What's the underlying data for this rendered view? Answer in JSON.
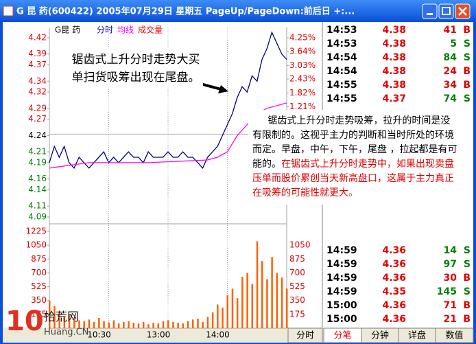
{
  "window": {
    "title": "G 昆  药(600422)  2005年07月29日  星期五  PageUp/PageDown:前后日  +:..."
  },
  "chart_data": [
    {
      "type": "line",
      "stock": "G昆  药",
      "xlim": [
        0,
        240
      ],
      "xticks": [
        {
          "value": 60,
          "label": "10:30"
        },
        {
          "value": 120,
          "label": "13:00"
        },
        {
          "value": 180,
          "label": "14:00"
        }
      ],
      "ylim": [
        4.09,
        4.42
      ],
      "yticks": [
        4.42,
        4.39,
        4.37,
        4.34,
        4.32,
        4.29,
        4.27,
        4.24,
        4.21,
        4.19,
        4.16,
        4.14,
        4.11,
        4.09
      ],
      "y2lim": [
        -3.65,
        4.25
      ],
      "y2ticks": [
        {
          "value": 4.25,
          "label": "4.25%"
        },
        {
          "value": 3.64,
          "label": "3.64%"
        },
        {
          "value": 3.03,
          "label": "3.03%"
        },
        {
          "value": 2.43,
          "label": "2.43%"
        },
        {
          "value": 1.82,
          "label": "1.82%"
        },
        {
          "value": 1.21,
          "label": "1.21%"
        }
      ],
      "series": [
        {
          "name": "分时",
          "color": "#000080",
          "x": [
            0,
            5,
            10,
            15,
            20,
            25,
            30,
            35,
            40,
            45,
            50,
            55,
            60,
            65,
            70,
            75,
            80,
            85,
            90,
            95,
            100,
            105,
            110,
            115,
            120,
            125,
            130,
            135,
            140,
            145,
            150,
            155,
            160,
            165,
            170,
            175,
            180,
            185,
            190,
            195,
            200,
            205,
            210,
            215,
            220,
            225,
            230,
            235,
            240
          ],
          "values": [
            4.19,
            4.22,
            4.2,
            4.22,
            4.19,
            4.18,
            4.2,
            4.19,
            4.18,
            4.19,
            4.2,
            4.21,
            4.19,
            4.2,
            4.19,
            4.2,
            4.21,
            4.2,
            4.2,
            4.19,
            4.21,
            4.2,
            4.2,
            4.2,
            4.21,
            4.2,
            4.2,
            4.21,
            4.2,
            4.2,
            4.19,
            4.18,
            4.2,
            4.21,
            4.22,
            4.24,
            4.26,
            4.28,
            4.31,
            4.33,
            4.32,
            4.35,
            4.34,
            4.38,
            4.4,
            4.43,
            4.41,
            4.39,
            4.38
          ]
        },
        {
          "name": "均线",
          "color": "#ff00ff",
          "x": [
            0,
            40,
            100,
            160,
            170,
            180,
            190,
            200,
            210,
            220,
            240
          ],
          "values": [
            4.18,
            4.19,
            4.19,
            4.195,
            4.2,
            4.21,
            4.24,
            4.26,
            4.28,
            4.29,
            4.3
          ]
        }
      ]
    },
    {
      "type": "bar",
      "xlim": [
        0,
        240
      ],
      "ylim": [
        0,
        1225
      ],
      "yticks": [
        1225,
        1050,
        875,
        700,
        525,
        350,
        175
      ],
      "series": [
        {
          "name": "成交量",
          "color": "#ff6000",
          "x": [
            0,
            5,
            10,
            15,
            20,
            25,
            30,
            35,
            40,
            45,
            50,
            55,
            60,
            65,
            70,
            75,
            80,
            85,
            90,
            95,
            100,
            105,
            110,
            115,
            120,
            125,
            130,
            135,
            140,
            145,
            150,
            155,
            160,
            165,
            170,
            175,
            180,
            185,
            190,
            195,
            200,
            205,
            210,
            215,
            220,
            225,
            230,
            235,
            240
          ],
          "values": [
            350,
            280,
            200,
            150,
            180,
            120,
            100,
            90,
            110,
            80,
            130,
            90,
            70,
            100,
            60,
            80,
            90,
            70,
            60,
            80,
            50,
            70,
            60,
            90,
            100,
            80,
            70,
            60,
            90,
            110,
            120,
            80,
            140,
            200,
            300,
            260,
            420,
            500,
            380,
            650,
            700,
            560,
            1100,
            850,
            620,
            900,
            700,
            640,
            500
          ]
        }
      ]
    }
  ],
  "annotations": [
    {
      "text": "锯齿式上升分时走势大买单扫货吸筹出现在尾盘。"
    },
    {
      "text": "锯齿式上升分时走势吸筹，拉升的时间是没有限制的。这视乎主力的判断和当时所处的环境而定。早盘，中午，下午，尾盘 ，拉起都是有可能的。",
      "highlight": "在锯齿式上升分时走势中，如果出现卖盘压单而股价累创当天新高盘口，这属于主力真正在吸筹的可能性就更大。"
    }
  ],
  "trades": {
    "top": [
      [
        "14:53",
        "4.38",
        "41",
        "B"
      ],
      [
        "14:53",
        "4.38",
        "5",
        "S"
      ],
      [
        "14:54",
        "4.38",
        "84",
        "S"
      ],
      [
        "14:54",
        "4.38",
        "24",
        "B"
      ],
      [
        "14:55",
        "4.38",
        "34",
        "B"
      ],
      [
        "14:55",
        "4.37",
        "74",
        "S"
      ]
    ],
    "bottom": [
      [
        "14:59",
        "4.36",
        "14",
        "S"
      ],
      [
        "14:59",
        "4.36",
        "97",
        "S"
      ],
      [
        "14:59",
        "4.36",
        "30",
        "B"
      ],
      [
        "14:59",
        "4.35",
        "145",
        "S"
      ],
      [
        "15:00",
        "4.36",
        "71",
        "B"
      ],
      [
        "15:00",
        "4.36",
        "21",
        "B"
      ]
    ]
  },
  "tabs": [
    "分时",
    "分笔",
    "分钟",
    "详盘",
    "数值"
  ],
  "watermark": {
    "logo": "10",
    "name": "拾荒网",
    "url": "Huang.CN"
  }
}
